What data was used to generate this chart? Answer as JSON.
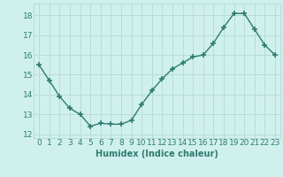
{
  "x": [
    0,
    1,
    2,
    3,
    4,
    5,
    6,
    7,
    8,
    9,
    10,
    11,
    12,
    13,
    14,
    15,
    16,
    17,
    18,
    19,
    20,
    21,
    22,
    23
  ],
  "y": [
    15.5,
    14.7,
    13.9,
    13.3,
    13.0,
    12.4,
    12.55,
    12.5,
    12.5,
    12.7,
    13.5,
    14.2,
    14.8,
    15.3,
    15.6,
    15.9,
    16.0,
    16.6,
    17.4,
    18.1,
    18.1,
    17.3,
    16.5,
    16.0
  ],
  "line_color": "#2e7d6e",
  "marker": "+",
  "marker_size": 4,
  "bg_color": "#d0f0ee",
  "grid_color": "#b8dcd8",
  "xlabel": "Humidex (Indice chaleur)",
  "tick_color": "#2e7d6e",
  "ylim": [
    11.8,
    18.6
  ],
  "xlim": [
    -0.5,
    23.5
  ],
  "yticks": [
    12,
    13,
    14,
    15,
    16,
    17,
    18
  ],
  "xticks": [
    0,
    1,
    2,
    3,
    4,
    5,
    6,
    7,
    8,
    9,
    10,
    11,
    12,
    13,
    14,
    15,
    16,
    17,
    18,
    19,
    20,
    21,
    22,
    23
  ],
  "font_size": 6.5
}
